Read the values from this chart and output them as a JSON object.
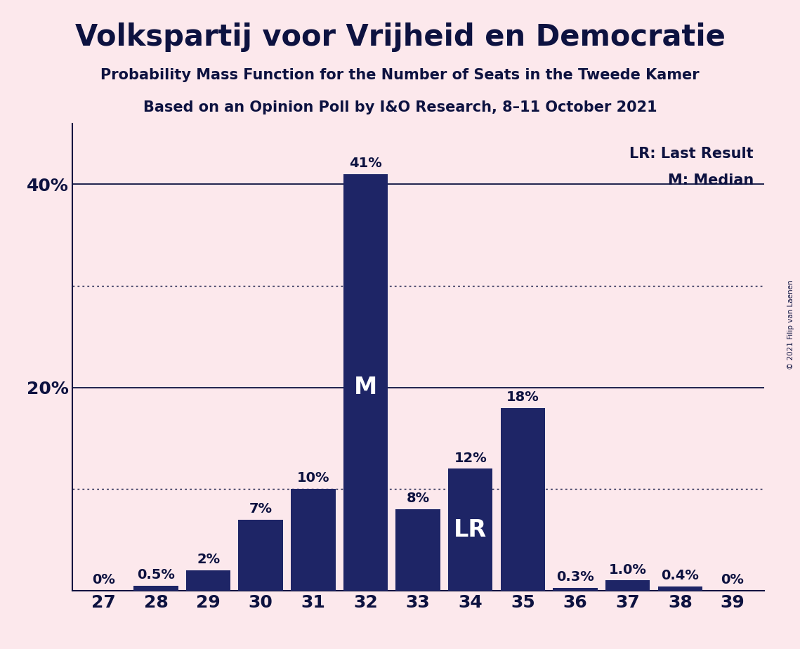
{
  "title": "Volkspartij voor Vrijheid en Democratie",
  "subtitle1": "Probability Mass Function for the Number of Seats in the Tweede Kamer",
  "subtitle2": "Based on an Opinion Poll by I&O Research, 8–11 October 2021",
  "copyright": "© 2021 Filip van Laenen",
  "categories": [
    27,
    28,
    29,
    30,
    31,
    32,
    33,
    34,
    35,
    36,
    37,
    38,
    39
  ],
  "values": [
    0.0,
    0.5,
    2.0,
    7.0,
    10.0,
    41.0,
    8.0,
    12.0,
    18.0,
    0.3,
    1.0,
    0.4,
    0.0
  ],
  "bar_labels": [
    "0%",
    "0.5%",
    "2%",
    "7%",
    "10%",
    "41%",
    "8%",
    "12%",
    "18%",
    "0.3%",
    "1.0%",
    "0.4%",
    "0%"
  ],
  "bar_color": "#1e2566",
  "background_color": "#fce8ec",
  "text_color": "#0d1240",
  "ylim": [
    0,
    46
  ],
  "median_seat": 32,
  "lr_seat": 34,
  "legend_lr": "LR: Last Result",
  "legend_m": "M: Median",
  "solid_gridlines": [
    20,
    40
  ],
  "dotted_gridlines": [
    10,
    30
  ],
  "title_fontsize": 30,
  "subtitle_fontsize": 15,
  "tick_fontsize": 18,
  "ytick_fontsize": 18,
  "bar_label_fontsize": 14,
  "inside_label_fontsize": 24,
  "legend_fontsize": 15
}
